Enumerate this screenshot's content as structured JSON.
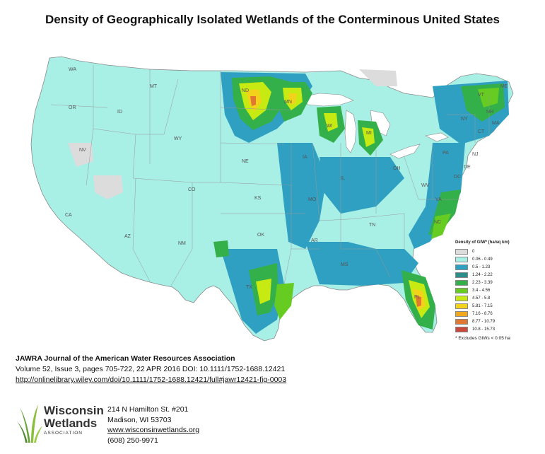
{
  "title": "Density of Geographically Isolated Wetlands of the Conterminous United States",
  "map": {
    "base_color": "#a8efe6",
    "border_color": "#8a8a8a",
    "states": [
      "WA",
      "MT",
      "ND",
      "MN",
      "OR",
      "ID",
      "WY",
      "NE",
      "IA",
      "IL",
      "NV",
      "CA",
      "CO",
      "KS",
      "MO",
      "AZ",
      "NM",
      "OK",
      "AR",
      "TX",
      "MS",
      "TN",
      "WV",
      "OH",
      "PA",
      "NY",
      "VT",
      "NH",
      "ME",
      "MA",
      "CT",
      "MI",
      "WI",
      "VA",
      "NC",
      "DC",
      "DE",
      "NJ",
      "FL"
    ]
  },
  "legend": {
    "title": "Density of GIW* (ha/sq km)",
    "items": [
      {
        "label": "0",
        "color": "#dcdcdc"
      },
      {
        "label": "0.06 - 0.49",
        "color": "#a8efe6"
      },
      {
        "label": "0.5 - 1.23",
        "color": "#2f9fc2"
      },
      {
        "label": "1.24 - 2.22",
        "color": "#2a8e8a"
      },
      {
        "label": "2.23 - 3.39",
        "color": "#33b04a"
      },
      {
        "label": "3.4 - 4.56",
        "color": "#66cc22"
      },
      {
        "label": "4.57 - 5.8",
        "color": "#c6ea12"
      },
      {
        "label": "5.81 - 7.15",
        "color": "#f3d21b"
      },
      {
        "label": "7.16 - 8.76",
        "color": "#f0a81c"
      },
      {
        "label": "8.77 - 10.79",
        "color": "#e07830"
      },
      {
        "label": "10.8 - 15.73",
        "color": "#c84a3c"
      }
    ],
    "note": "* Excludes GIWs < 0.05 ha"
  },
  "citation": {
    "journal": "JAWRA Journal of the American Water Resources Association",
    "volume": "Volume 52, Issue 3, pages 705-722, 22 APR 2016 DOI: 10.1111/1752-1688.12421",
    "link": "http://onlinelibrary.wiley.com/doi/10.1111/1752-1688.12421/full#jawr12421-fig-0003"
  },
  "logo": {
    "line1": "Wisconsin",
    "line2": "Wetlands",
    "line3": "ASSOCIATION"
  },
  "address": {
    "street": "214 N Hamilton St. #201",
    "city": "Madison, WI 53703",
    "website": "www.wisconsinwetlands.org",
    "phone": "(608) 250-9971"
  }
}
